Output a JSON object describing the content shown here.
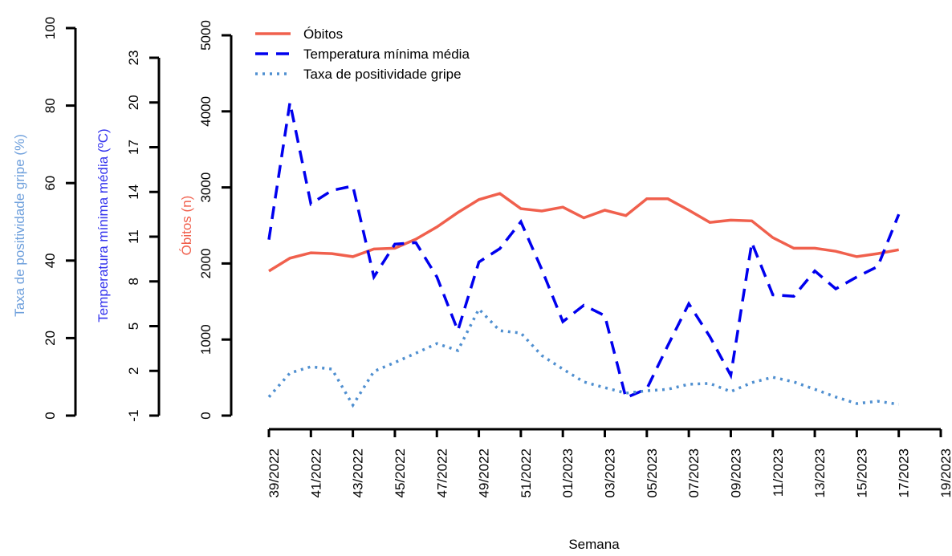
{
  "chart_data": {
    "type": "line",
    "xlabel": "Semana",
    "ylabel": "Óbitos (n)",
    "y2label": "Temperatura mínima média (ºC)",
    "y3label": "Taxa de positividade gripe (%)",
    "categories": [
      "39/2022",
      null,
      "41/2022",
      null,
      "43/2022",
      null,
      "45/2022",
      null,
      "47/2022",
      null,
      "49/2022",
      null,
      "51/2022",
      null,
      "01/2023",
      null,
      "03/2023",
      null,
      "05/2023",
      null,
      "07/2023",
      null,
      "09/2023",
      null,
      "11/2023",
      null,
      "13/2023",
      null,
      "15/2023",
      null,
      "17/2023",
      null,
      "19/2023"
    ],
    "ylim": [
      0,
      5000
    ],
    "yticks": [
      0,
      1000,
      2000,
      3000,
      4000,
      5000
    ],
    "y2lim": [
      -1,
      23
    ],
    "y2ticks": [
      -1,
      2,
      5,
      8,
      11,
      14,
      17,
      20,
      23
    ],
    "y3lim": [
      0,
      100
    ],
    "y3ticks": [
      0,
      20,
      40,
      60,
      80,
      100
    ],
    "legend": "top-left",
    "series": [
      {
        "name": "Óbitos",
        "color": "#f0604d",
        "linestyle": "solid",
        "axis": "y",
        "values": [
          1900,
          2070,
          2140,
          2130,
          2090,
          2190,
          2200,
          2320,
          2480,
          2670,
          2840,
          2920,
          2720,
          2690,
          2740,
          2600,
          2700,
          2630,
          2850,
          2850,
          2700,
          2540,
          2570,
          2560,
          2340,
          2200,
          2200,
          2160,
          2090,
          2130,
          2180,
          null,
          null
        ]
      },
      {
        "name": "Temperatura mínima média",
        "color": "#0000ee",
        "linestyle": "dashed",
        "axis": "y2",
        "values": [
          10.8,
          20.0,
          13.2,
          14.1,
          14.4,
          8.3,
          10.5,
          10.6,
          8.3,
          4.7,
          9.3,
          10.2,
          12.0,
          8.8,
          5.3,
          6.4,
          5.7,
          0.2,
          0.8,
          3.7,
          6.5,
          4.3,
          1.7,
          10.6,
          7.1,
          7.0,
          8.7,
          7.5,
          8.3,
          9.0,
          12.5,
          null,
          null
        ]
      },
      {
        "name": "Taxa de positividade gripe",
        "color": "#4f8fd0",
        "linestyle": "dotted",
        "axis": "y3",
        "values": [
          4.8,
          11.0,
          12.6,
          12.0,
          2.7,
          11.4,
          13.7,
          16.1,
          18.6,
          16.8,
          27.5,
          21.9,
          21.3,
          15.5,
          12.0,
          8.7,
          7.2,
          5.8,
          6.4,
          6.8,
          8.1,
          8.3,
          6.2,
          8.5,
          9.9,
          8.7,
          6.8,
          4.8,
          3.1,
          3.7,
          2.9,
          null,
          null
        ]
      }
    ]
  }
}
